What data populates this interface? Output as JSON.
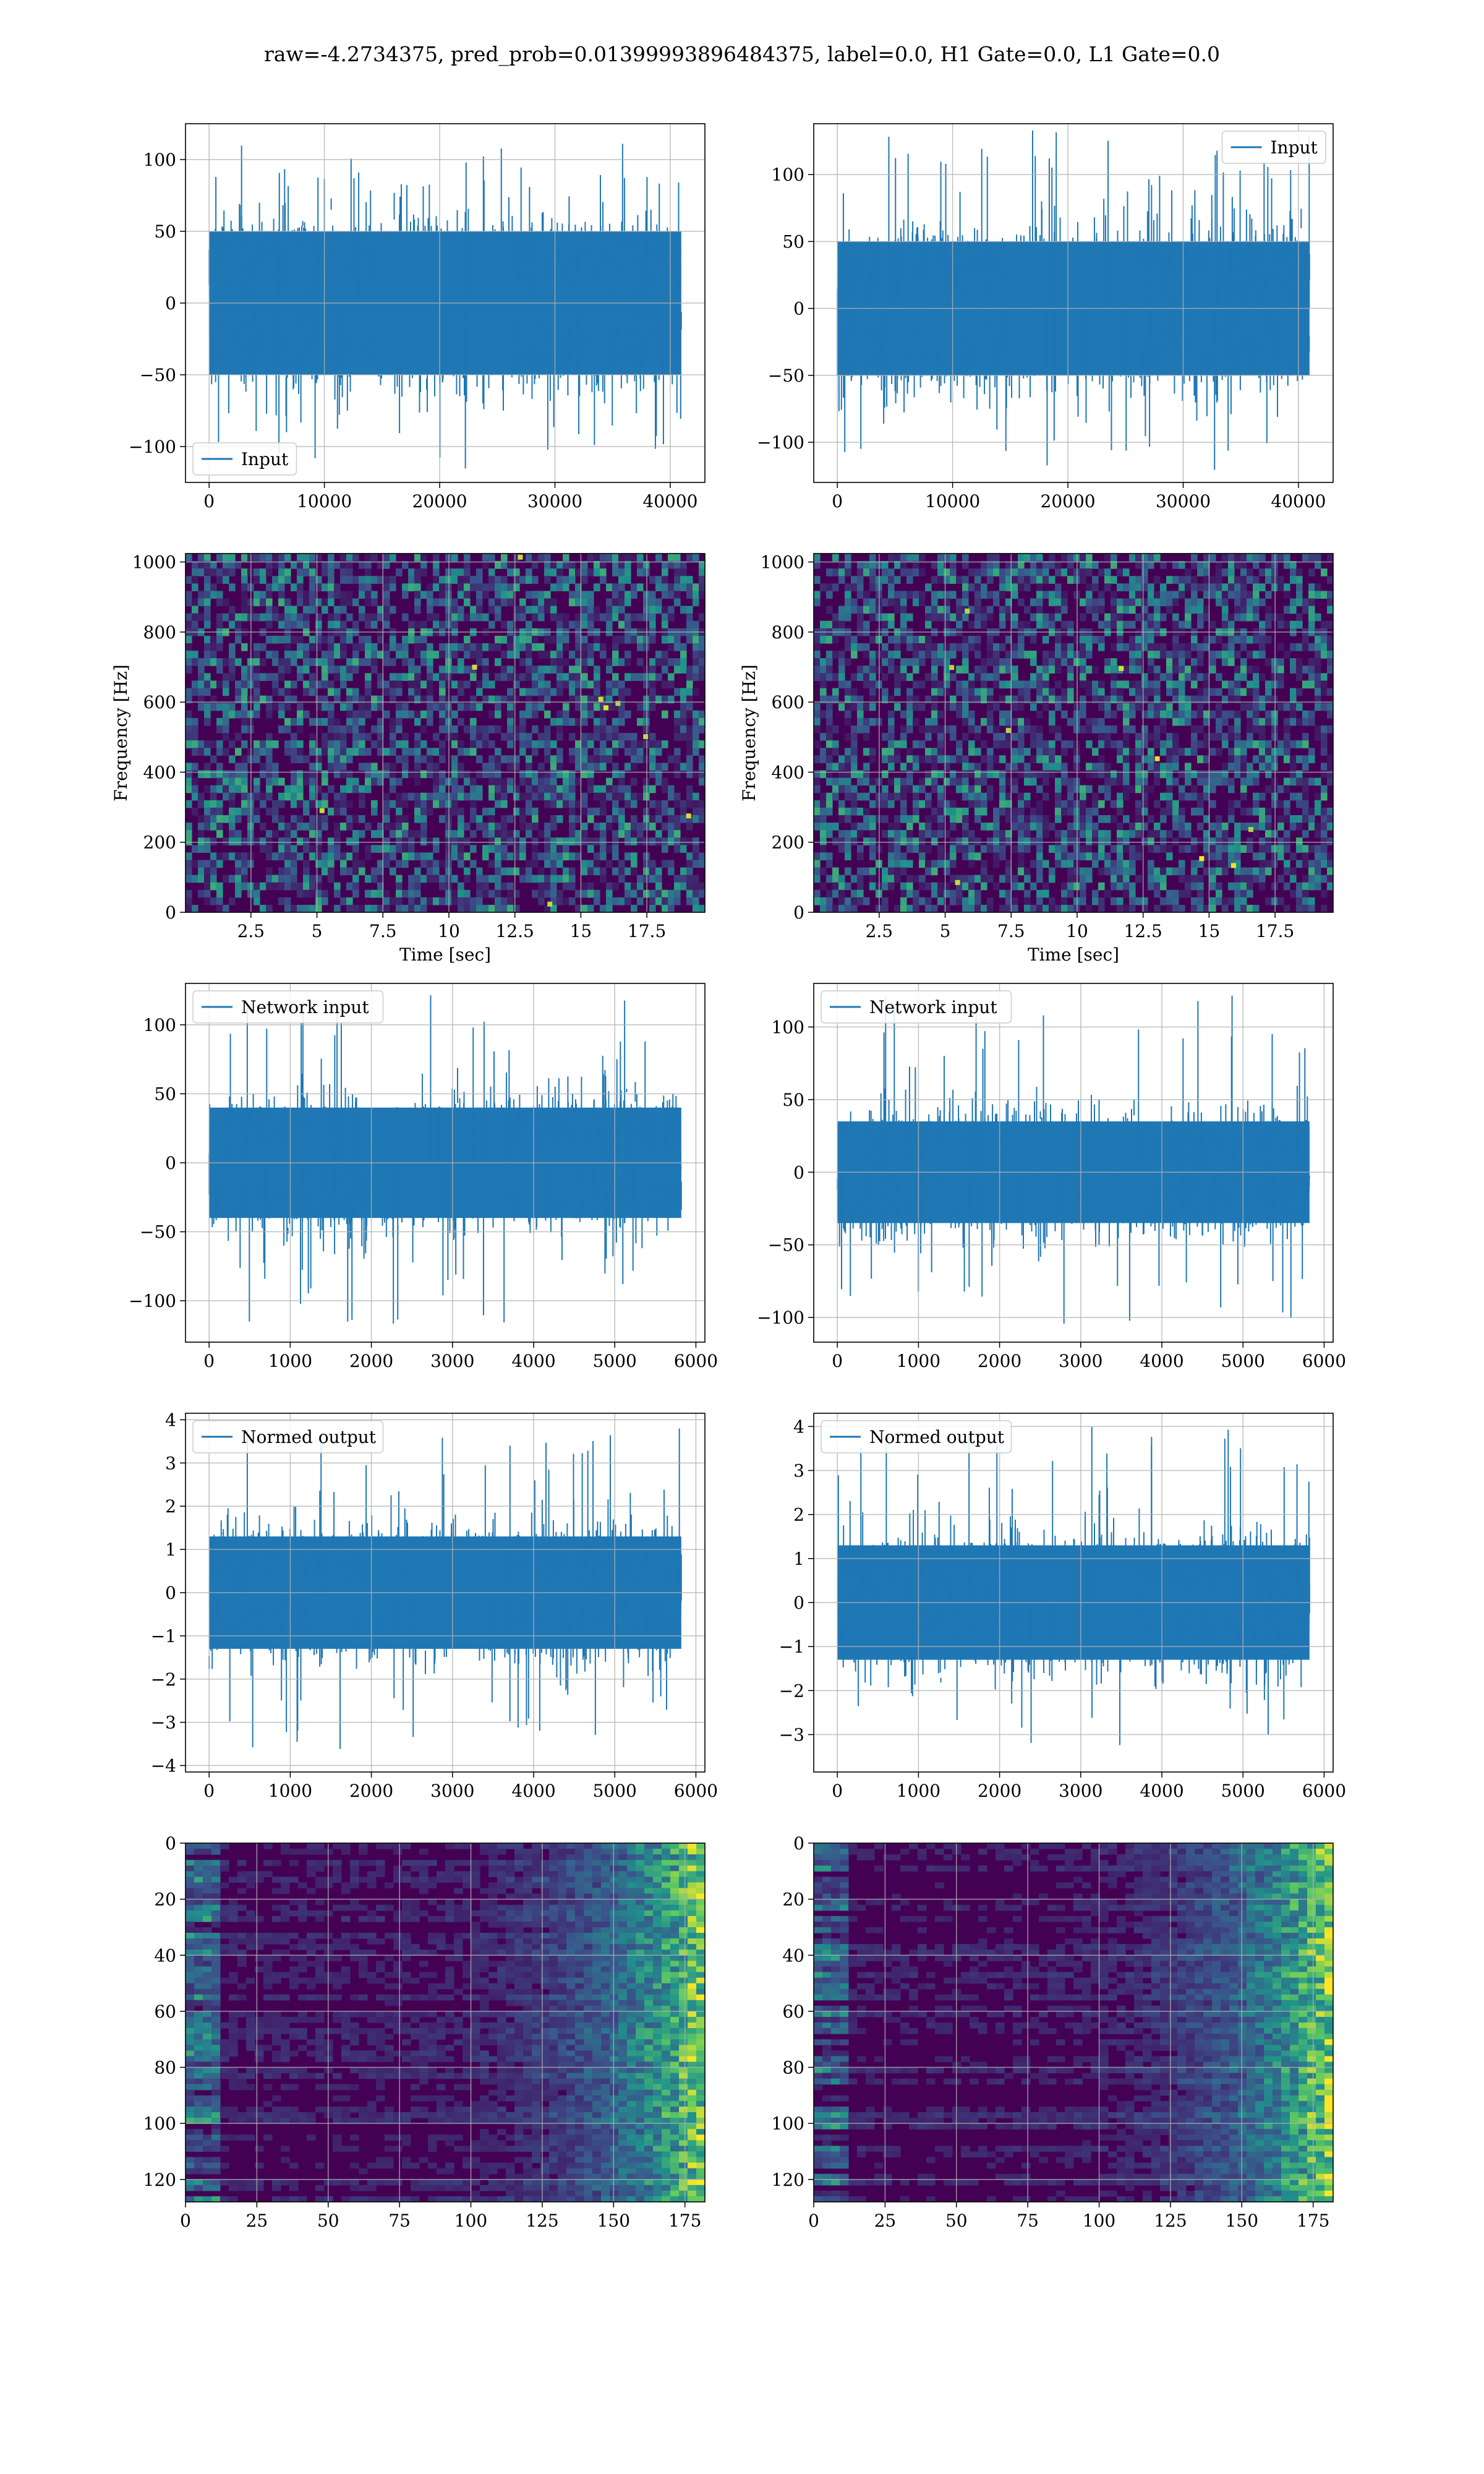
{
  "figure": {
    "title": "raw=-4.2734375, pred_prob=0.01399993896484375, label=0.0, H1 Gate=0.0, L1 Gate=0.0"
  },
  "colors": {
    "line": "#1f77b4",
    "grid": "#b0b0b0",
    "viridis_low": "#440154",
    "viridis_mid": "#21918c",
    "viridis_high": "#fde725"
  },
  "chart_data": [
    {
      "id": "input-h1",
      "type": "line",
      "xlim": [
        -2048,
        43008
      ],
      "ylim": [
        -125,
        125
      ],
      "xticks": [
        0,
        10000,
        20000,
        30000,
        40000
      ],
      "yticks": [
        -100,
        -50,
        0,
        50,
        100
      ],
      "xlabel": "",
      "ylabel": "",
      "grid": true,
      "legend": {
        "label": "Input",
        "loc": "lower-left"
      },
      "series": [
        {
          "name": "Input",
          "x_start": 0,
          "x_end": 40960,
          "envelope": [
            -117,
            111
          ],
          "typical": [
            -50,
            50
          ]
        }
      ]
    },
    {
      "id": "input-l1",
      "type": "line",
      "xlim": [
        -2048,
        43008
      ],
      "ylim": [
        -130,
        138
      ],
      "xticks": [
        0,
        10000,
        20000,
        30000,
        40000
      ],
      "yticks": [
        -100,
        -50,
        0,
        50,
        100
      ],
      "xlabel": "",
      "ylabel": "",
      "grid": true,
      "legend": {
        "label": "Input",
        "loc": "upper-right"
      },
      "series": [
        {
          "name": "Input",
          "x_start": 0,
          "x_end": 40960,
          "envelope": [
            -128,
            133
          ],
          "typical": [
            -50,
            50
          ]
        }
      ]
    },
    {
      "id": "spectrogram-h1",
      "type": "heatmap",
      "xlim": [
        0.02,
        19.7
      ],
      "ylim": [
        0,
        1024
      ],
      "xticks": [
        2.5,
        5.0,
        7.5,
        10.0,
        12.5,
        15.0,
        17.5
      ],
      "yticks": [
        0,
        200,
        400,
        600,
        800,
        1000
      ],
      "xlabel": "Time [sec]",
      "ylabel": "Frequency [Hz]",
      "grid": true,
      "colormap": "viridis"
    },
    {
      "id": "spectrogram-l1",
      "type": "heatmap",
      "xlim": [
        0.02,
        19.7
      ],
      "ylim": [
        0,
        1024
      ],
      "xticks": [
        2.5,
        5.0,
        7.5,
        10.0,
        12.5,
        15.0,
        17.5
      ],
      "yticks": [
        0,
        200,
        400,
        600,
        800,
        1000
      ],
      "xlabel": "Time [sec]",
      "ylabel": "Frequency [Hz]",
      "grid": true,
      "colormap": "viridis"
    },
    {
      "id": "network-input-h1",
      "type": "line",
      "xlim": [
        -291,
        6111
      ],
      "ylim": [
        -130,
        130
      ],
      "xticks": [
        0,
        1000,
        2000,
        3000,
        4000,
        5000,
        6000
      ],
      "yticks": [
        -100,
        -50,
        0,
        50,
        100
      ],
      "xlabel": "",
      "ylabel": "",
      "grid": true,
      "legend": {
        "label": "Network input",
        "loc": "upper-left"
      },
      "series": [
        {
          "name": "Network input",
          "x_start": 0,
          "x_end": 5820,
          "envelope": [
            -117,
            123
          ],
          "typical": [
            -40,
            40
          ]
        }
      ]
    },
    {
      "id": "network-input-l1",
      "type": "line",
      "xlim": [
        -291,
        6111
      ],
      "ylim": [
        -117,
        130
      ],
      "xticks": [
        0,
        1000,
        2000,
        3000,
        4000,
        5000,
        6000
      ],
      "yticks": [
        -100,
        -50,
        0,
        50,
        100
      ],
      "xlabel": "",
      "ylabel": "",
      "grid": true,
      "legend": {
        "label": "Network input",
        "loc": "upper-left"
      },
      "series": [
        {
          "name": "Network input",
          "x_start": 0,
          "x_end": 5820,
          "envelope": [
            -105,
            122
          ],
          "typical": [
            -35,
            35
          ]
        }
      ]
    },
    {
      "id": "normed-output-h1",
      "type": "line",
      "xlim": [
        -291,
        6111
      ],
      "ylim": [
        -4.15,
        4.15
      ],
      "xticks": [
        0,
        1000,
        2000,
        3000,
        4000,
        5000,
        6000
      ],
      "yticks": [
        -4,
        -3,
        -2,
        -1,
        0,
        1,
        2,
        3,
        4
      ],
      "xlabel": "",
      "ylabel": "",
      "grid": true,
      "legend": {
        "label": "Normed output",
        "loc": "upper-left"
      },
      "series": [
        {
          "name": "Normed output",
          "x_start": 0,
          "x_end": 5820,
          "envelope": [
            -3.7,
            3.9
          ],
          "typical": [
            -1.3,
            1.3
          ]
        }
      ]
    },
    {
      "id": "normed-output-l1",
      "type": "line",
      "xlim": [
        -291,
        6111
      ],
      "ylim": [
        -3.85,
        4.3
      ],
      "xticks": [
        0,
        1000,
        2000,
        3000,
        4000,
        5000,
        6000
      ],
      "yticks": [
        -3,
        -2,
        -1,
        0,
        1,
        2,
        3,
        4
      ],
      "xlabel": "",
      "ylabel": "",
      "grid": true,
      "legend": {
        "label": "Normed output",
        "loc": "upper-left"
      },
      "series": [
        {
          "name": "Normed output",
          "x_start": 0,
          "x_end": 5820,
          "envelope": [
            -3.4,
            4.0
          ],
          "typical": [
            -1.3,
            1.3
          ]
        }
      ]
    },
    {
      "id": "feature-map-h1",
      "type": "heatmap",
      "xlim": [
        0,
        182
      ],
      "ylim": [
        128,
        0
      ],
      "xticks": [
        0,
        25,
        50,
        75,
        100,
        125,
        150,
        175
      ],
      "yticks": [
        0,
        20,
        40,
        60,
        80,
        100,
        120
      ],
      "xlabel": "",
      "ylabel": "",
      "grid": true,
      "colormap": "viridis"
    },
    {
      "id": "feature-map-l1",
      "type": "heatmap",
      "xlim": [
        0,
        182
      ],
      "ylim": [
        128,
        0
      ],
      "xticks": [
        0,
        25,
        50,
        75,
        100,
        125,
        150,
        175
      ],
      "yticks": [
        0,
        20,
        40,
        60,
        80,
        100,
        120
      ],
      "xlabel": "",
      "ylabel": "",
      "grid": true,
      "colormap": "viridis"
    }
  ]
}
